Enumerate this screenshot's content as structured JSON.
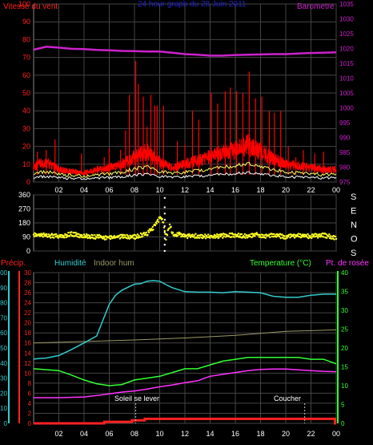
{
  "chart_data": [
    {
      "type": "line",
      "panel": "wind-barometer",
      "title": "24 hour graph du 28 Juin 2011",
      "ylabel_left": "Vitesse du vent",
      "ylabel_right": "Barometre",
      "ylim_left": [
        0,
        100
      ],
      "ylim_right": [
        975,
        1035
      ],
      "left_ticks": [
        "0",
        "10",
        "20",
        "30",
        "40",
        "50",
        "60",
        "70",
        "80",
        "90",
        "100"
      ],
      "right_ticks": [
        "975",
        "980",
        "985",
        "990",
        "995",
        "1000",
        "1005",
        "1010",
        "1015",
        "1020",
        "1025",
        "1030",
        "1035"
      ],
      "x_ticks": [
        "02",
        "04",
        "06",
        "08",
        "10",
        "12",
        "14",
        "16",
        "18",
        "20",
        "22",
        "00"
      ],
      "colors": {
        "wind": "#ff0000",
        "gust_avg": "#ffff66",
        "wind_avg": "#ffffff",
        "barometer": "#cc22cc",
        "title": "#2222cc",
        "grid": "#444444"
      },
      "series": [
        {
          "name": "Barometre",
          "axis": "right",
          "x": [
            0,
            1,
            2,
            3,
            4,
            5,
            6,
            7,
            8,
            9,
            10,
            11,
            12,
            13,
            14,
            15,
            16,
            17,
            18,
            19,
            20,
            21,
            22,
            23,
            24
          ],
          "values": [
            1019.6,
            1020.6,
            1020.3,
            1019.9,
            1019.8,
            1019.5,
            1019.4,
            1019.2,
            1019.1,
            1019.0,
            1019.0,
            1018.6,
            1018.1,
            1017.9,
            1017.6,
            1017.6,
            1017.8,
            1017.9,
            1018.0,
            1018.1,
            1018.1,
            1018.3,
            1018.5,
            1018.6,
            1018.7
          ]
        },
        {
          "name": "wind-base",
          "axis": "left",
          "x": [
            0,
            1,
            2,
            3,
            4,
            5,
            6,
            7,
            8,
            9,
            10,
            11,
            12,
            13,
            14,
            15,
            16,
            17,
            18,
            19,
            20,
            21,
            22,
            23,
            24
          ],
          "values": [
            9,
            11,
            7,
            6,
            5,
            7,
            8,
            10,
            14,
            17,
            11,
            8,
            10,
            12,
            14,
            16,
            18,
            21,
            17,
            13,
            10,
            9,
            8,
            7,
            7
          ]
        },
        {
          "name": "wind-spikes",
          "axis": "left",
          "x": [
            0.3,
            1.0,
            1.7,
            3.8,
            5.6,
            6.0,
            6.9,
            7.3,
            7.6,
            8.1,
            8.3,
            8.7,
            9.0,
            9.3,
            9.6,
            9.8,
            10.3,
            11.4,
            12.0,
            12.6,
            13.1,
            14.1,
            14.6,
            15.2,
            15.6,
            16.1,
            16.6,
            17.1,
            17.6,
            18.1,
            18.7,
            19.1,
            19.6,
            20.2,
            20.8,
            21.4,
            22.3,
            23.0
          ],
          "values": [
            17,
            18,
            24,
            16,
            14,
            19,
            18,
            29,
            49,
            68,
            55,
            48,
            31,
            49,
            43,
            43,
            43,
            23,
            21,
            40,
            35,
            50,
            44,
            51,
            53,
            51,
            50,
            62,
            47,
            48,
            40,
            39,
            40,
            20,
            14,
            18,
            16,
            17
          ]
        }
      ]
    },
    {
      "type": "scatter",
      "panel": "wind-direction",
      "ylabel_right": "S E N O S",
      "ylim": [
        0,
        360
      ],
      "y_ticks": [
        "0",
        "90",
        "180",
        "270",
        "360"
      ],
      "colors": {
        "points": "#ffff22",
        "grid": "#444444"
      },
      "series": [
        {
          "name": "direction",
          "x": [
            0,
            1,
            2,
            3,
            4,
            5,
            6,
            7,
            8,
            9,
            9.5,
            9.9,
            10.1,
            10.3,
            10.5,
            10.8,
            11.1,
            11.5,
            12,
            13,
            14,
            15,
            16,
            17,
            17.6,
            18,
            19,
            20,
            21,
            22,
            23,
            24
          ],
          "values": [
            105,
            100,
            92,
            108,
            95,
            90,
            85,
            92,
            90,
            110,
            150,
            200,
            220,
            175,
            80,
            165,
            100,
            110,
            95,
            98,
            92,
            97,
            102,
            92,
            110,
            95,
            100,
            92,
            98,
            94,
            100,
            85
          ]
        },
        {
          "name": "direction-vertical",
          "x": [
            10.4,
            10.4,
            10.4,
            10.4,
            10.4,
            10.4,
            10.4,
            10.4,
            10.4
          ],
          "values": [
            0,
            40,
            80,
            120,
            160,
            200,
            240,
            280,
            340
          ]
        }
      ]
    },
    {
      "type": "line",
      "panel": "weather",
      "legend": {
        "precip": "Précip.",
        "humidity": "Humidité",
        "indoor": "Indoor hum",
        "temperature": "Temperature (°C)",
        "dewpoint": "Pt. de rosée"
      },
      "ylim_precip": [
        0,
        100
      ],
      "ylim_humidity": [
        0,
        30
      ],
      "ylim_temp": [
        0,
        40
      ],
      "precip_ticks": [
        "0",
        "10",
        "20",
        "30",
        "40",
        "50",
        "60",
        "70",
        "80",
        "90",
        "100"
      ],
      "humidity_ticks": [
        "0",
        "2",
        "4",
        "6",
        "8",
        "10",
        "12",
        "14",
        "16",
        "18",
        "20",
        "22",
        "24",
        "26",
        "28",
        "30"
      ],
      "temp_ticks": [
        "0",
        "5",
        "10",
        "15",
        "20",
        "25",
        "30",
        "35",
        "40"
      ],
      "x_ticks": [
        "02",
        "04",
        "06",
        "08",
        "10",
        "12",
        "14",
        "16",
        "18",
        "20",
        "22",
        "00"
      ],
      "annotations": {
        "sunrise": "Soleil se lever",
        "sunset": "Coucher"
      },
      "colors": {
        "precip": "#ff2222",
        "humidity": "#33cccc",
        "indoor": "#999966",
        "temperature": "#33ff33",
        "dewpoint": "#ff33ff",
        "grid": "#444444",
        "sun_marker": "#bbbbbb"
      },
      "series": [
        {
          "name": "Humidité",
          "axis": "humidity",
          "x": [
            0,
            1,
            2,
            3,
            4,
            5,
            6,
            6.5,
            7,
            7.5,
            8,
            8.5,
            9,
            9.5,
            10,
            10.5,
            11,
            12,
            13,
            14,
            15,
            16,
            17,
            18,
            19,
            20,
            21,
            22,
            23,
            24
          ],
          "values": [
            12.8,
            13.0,
            13.5,
            14.7,
            16.0,
            17.4,
            23.7,
            25.5,
            26.5,
            27.1,
            27.7,
            27.8,
            28.3,
            28.4,
            28.3,
            27.6,
            27.0,
            26.2,
            26.1,
            26.1,
            26.0,
            26.2,
            26.1,
            26.0,
            25.3,
            25.1,
            25.1,
            25.5,
            25.7,
            25.7
          ]
        },
        {
          "name": "Indoor hum",
          "axis": "humidity",
          "x": [
            0,
            4,
            8,
            12,
            16,
            20,
            24
          ],
          "values": [
            16.0,
            16.3,
            16.6,
            17.0,
            17.5,
            18.3,
            18.6
          ]
        },
        {
          "name": "Temperature (°C)",
          "axis": "temp",
          "x": [
            0,
            2,
            3,
            4,
            5,
            6,
            7,
            8,
            9,
            10,
            11,
            12,
            13,
            14,
            15,
            16,
            17,
            18,
            19,
            20,
            21,
            22,
            23,
            24
          ],
          "values": [
            14.5,
            14.0,
            12.8,
            11.5,
            10.5,
            10.0,
            10.3,
            11.5,
            12.0,
            12.5,
            13.5,
            14.5,
            14.5,
            15.5,
            16.5,
            17.0,
            17.5,
            17.5,
            17.5,
            17.5,
            17.5,
            17.0,
            17.0,
            15.8
          ]
        },
        {
          "name": "Pt. de rosée",
          "axis": "temp",
          "x": [
            0,
            2,
            4,
            6,
            7,
            8,
            9,
            10,
            11,
            12,
            13,
            14,
            15,
            16,
            17,
            18,
            19,
            20,
            21,
            22,
            23,
            24
          ],
          "values": [
            6.8,
            6.8,
            7.0,
            7.8,
            8.3,
            8.6,
            9.1,
            9.7,
            10.2,
            10.8,
            11.3,
            12.5,
            13.0,
            13.5,
            14.0,
            14.3,
            14.4,
            14.4,
            14.2,
            14.0,
            13.8,
            13.7
          ]
        },
        {
          "name": "Précip.",
          "axis": "precip",
          "x": [
            0,
            5.6,
            5.61,
            7.8,
            7.81,
            8.8,
            8.81,
            23.9,
            23.91,
            24
          ],
          "values": [
            0,
            0,
            1,
            1,
            2,
            2,
            3,
            3,
            0,
            0
          ]
        }
      ]
    }
  ]
}
